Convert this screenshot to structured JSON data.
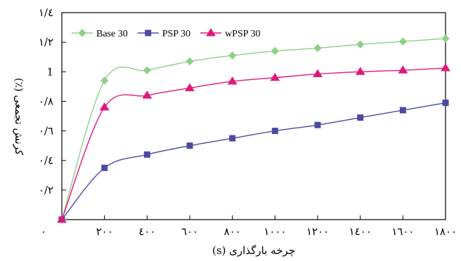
{
  "chart_data": {
    "type": "line",
    "title": "",
    "xlabel": "چرخه بارگذاری (s)",
    "ylabel": "کرنش تجمعی (٪)",
    "x": [
      0,
      200,
      400,
      600,
      800,
      1000,
      1200,
      1400,
      1600,
      1800
    ],
    "xlim": [
      0,
      1800
    ],
    "ylim": [
      0,
      1.4
    ],
    "x_tick_values": [
      0,
      200,
      400,
      600,
      800,
      1000,
      1200,
      1400,
      1600,
      1800
    ],
    "x_tick_labels": [
      "٠",
      "٢٠٠",
      "٤٠٠",
      "٦٠٠",
      "٨٠٠",
      "١٠٠٠",
      "١٢٠٠",
      "١٤٠٠",
      "١٦٠٠",
      "١٨٠٠"
    ],
    "y_tick_values": [
      0.2,
      0.4,
      0.6,
      0.8,
      1.0,
      1.2,
      1.4
    ],
    "y_tick_labels": [
      "٠/٢",
      "٠/٤",
      "٠/٦",
      "٠/٨",
      "1",
      "١/٢",
      "١/٤"
    ],
    "grid": false,
    "legend": "top-left",
    "series": [
      {
        "name": "Base 30",
        "color": "#8ED08A",
        "marker": "diamond",
        "values": [
          0,
          0.94,
          1.01,
          1.07,
          1.11,
          1.14,
          1.16,
          1.185,
          1.205,
          1.225
        ]
      },
      {
        "name": "PSP 30",
        "color": "#4B4BA0",
        "marker": "square",
        "values": [
          0,
          0.35,
          0.44,
          0.5,
          0.55,
          0.6,
          0.64,
          0.69,
          0.74,
          0.79
        ]
      },
      {
        "name": "wPSP 30",
        "color": "#E0187A",
        "marker": "triangle",
        "values": [
          0,
          0.76,
          0.84,
          0.89,
          0.935,
          0.96,
          0.985,
          1.0,
          1.01,
          1.025
        ]
      }
    ]
  }
}
